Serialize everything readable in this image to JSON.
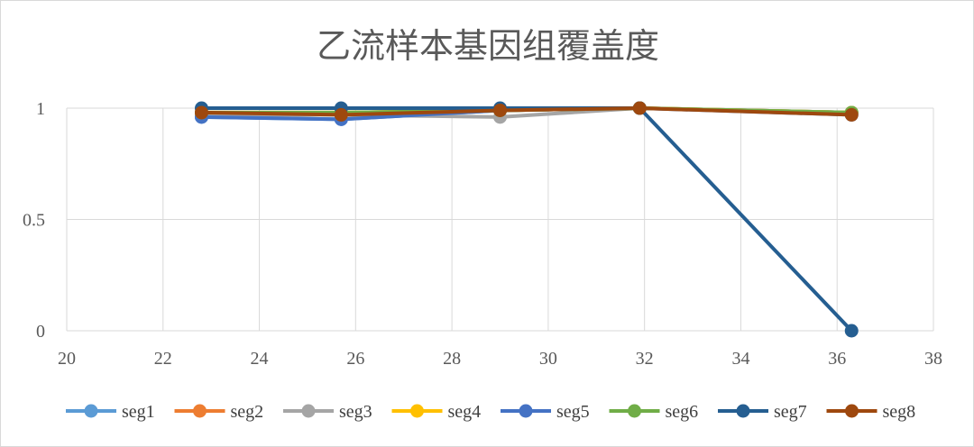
{
  "chart_data": {
    "type": "line",
    "title": "乙流样本基因组覆盖度",
    "xlabel": "",
    "ylabel": "",
    "xlim": [
      20,
      38
    ],
    "ylim": [
      0,
      1
    ],
    "x_ticks": [
      20,
      22,
      24,
      26,
      28,
      30,
      32,
      34,
      36,
      38
    ],
    "y_ticks": [
      0,
      0.5,
      1
    ],
    "x_tick_labels": [
      "20",
      "22",
      "24",
      "26",
      "28",
      "30",
      "32",
      "34",
      "36",
      "38"
    ],
    "y_tick_labels": [
      "0",
      "0.5",
      "1"
    ],
    "grid": true,
    "legend_position": "bottom",
    "x": [
      22.8,
      25.7,
      29.0,
      31.9,
      36.3
    ],
    "series": [
      {
        "name": "seg1",
        "color": "#5B9BD5",
        "values": [
          0.96,
          0.95,
          0.99,
          1.0,
          0.98
        ]
      },
      {
        "name": "seg2",
        "color": "#ED7D31",
        "values": [
          0.98,
          0.98,
          0.99,
          1.0,
          0.98
        ]
      },
      {
        "name": "seg3",
        "color": "#A5A5A5",
        "values": [
          0.97,
          0.97,
          0.96,
          1.0,
          0.98
        ]
      },
      {
        "name": "seg4",
        "color": "#FFC000",
        "values": [
          0.98,
          0.98,
          0.99,
          1.0,
          0.98
        ]
      },
      {
        "name": "seg5",
        "color": "#4472C4",
        "values": [
          0.96,
          0.95,
          0.99,
          1.0,
          0.97
        ]
      },
      {
        "name": "seg6",
        "color": "#70AD47",
        "values": [
          0.98,
          0.98,
          0.99,
          1.0,
          0.98
        ]
      },
      {
        "name": "seg7",
        "color": "#255E91",
        "values": [
          1.0,
          1.0,
          1.0,
          1.0,
          0.0
        ]
      },
      {
        "name": "seg8",
        "color": "#9E480E",
        "values": [
          0.98,
          0.97,
          0.99,
          1.0,
          0.97
        ]
      }
    ]
  }
}
